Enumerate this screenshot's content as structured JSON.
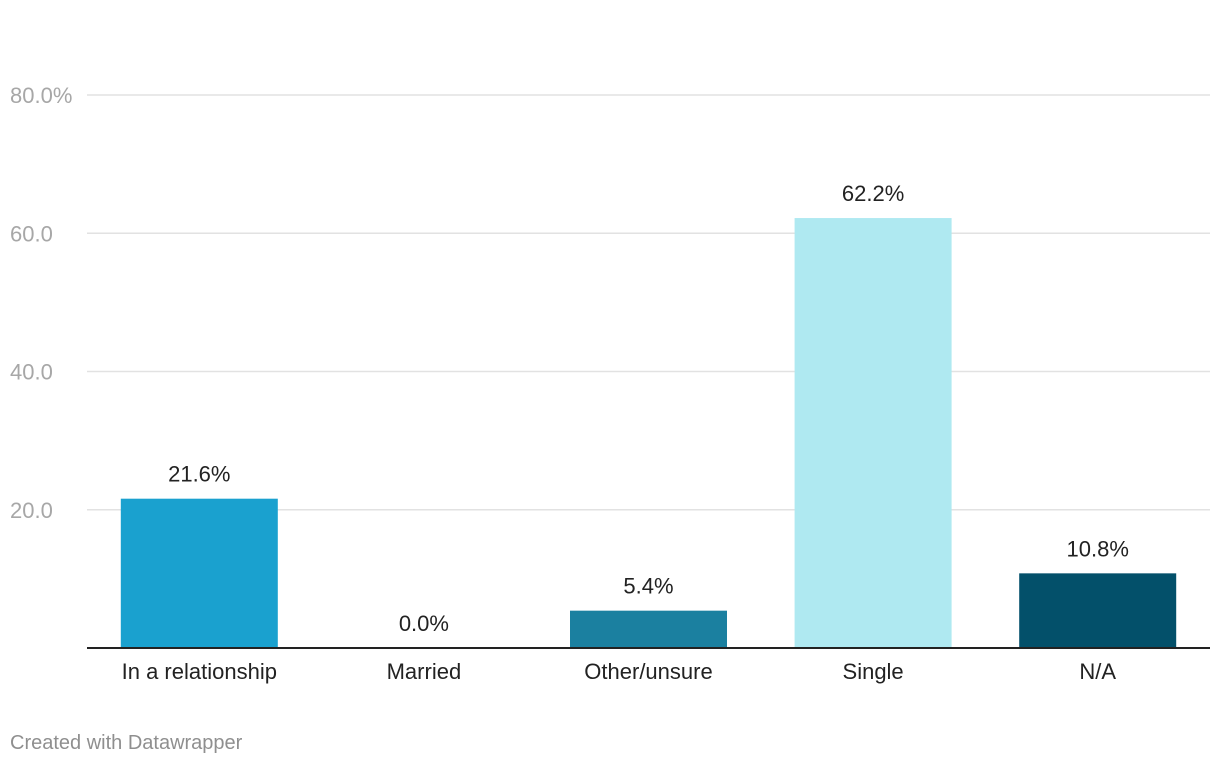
{
  "chart_data": {
    "type": "bar",
    "categories": [
      "In a relationship",
      "Married",
      "Other/unsure",
      "Single",
      "N/A"
    ],
    "values": [
      21.6,
      0.0,
      5.4,
      62.2,
      10.8
    ],
    "value_labels": [
      "21.6%",
      "0.0%",
      "5.4%",
      "62.2%",
      "10.8%"
    ],
    "bar_colors": [
      "#1aa1cf",
      "#1aa1cf",
      "#1b80a0",
      "#afe9f1",
      "#03506a"
    ],
    "yticks": [
      20,
      40,
      60,
      80
    ],
    "ytick_labels": [
      "20.0",
      "40.0",
      "60.0",
      "80.0%"
    ],
    "ylim": [
      0,
      80
    ],
    "grid": true,
    "title": "",
    "xlabel": "",
    "ylabel": ""
  },
  "footer": {
    "credit": "Created with Datawrapper"
  },
  "colors": {
    "gridline": "#e2e2e2",
    "baseline": "#222222",
    "tick_text": "#a7a7a7",
    "label_text": "#222222",
    "credit_text": "#8f8f8f"
  }
}
